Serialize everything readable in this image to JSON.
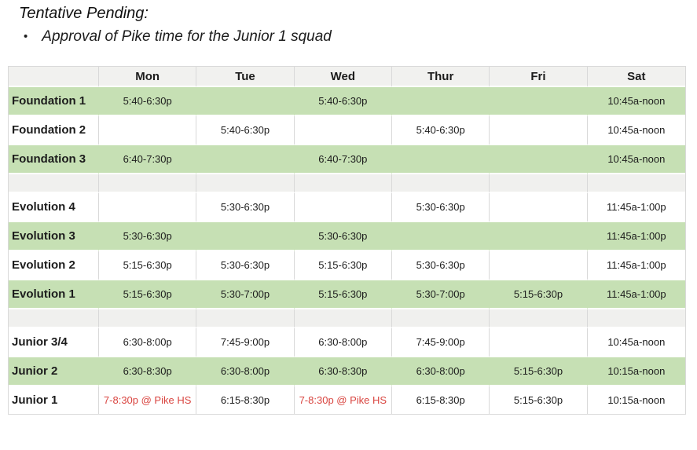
{
  "page": {
    "title": "Tentative Pending:",
    "bullet_glyph": "•",
    "bullet": "Approval of Pike time for the Junior 1 squad"
  },
  "colors": {
    "green_row": "#c6e0b4",
    "spacer_row": "#f0f0ee",
    "header_row": "#f1f1ef",
    "pike_red": "#d9443f",
    "border_gray": "#d9d9d9"
  },
  "table": {
    "corner_label": "",
    "days": [
      "Mon",
      "Tue",
      "Wed",
      "Thur",
      "Fri",
      "Sat"
    ],
    "rows": [
      {
        "label": "Foundation 1",
        "style": "green",
        "cells": [
          {
            "text": "5:40-6:30p"
          },
          {
            "text": ""
          },
          {
            "text": "5:40-6:30p"
          },
          {
            "text": ""
          },
          {
            "text": ""
          },
          {
            "text": "10:45a-noon"
          }
        ]
      },
      {
        "label": "Foundation 2",
        "style": "white",
        "cells": [
          {
            "text": ""
          },
          {
            "text": "5:40-6:30p"
          },
          {
            "text": ""
          },
          {
            "text": "5:40-6:30p"
          },
          {
            "text": ""
          },
          {
            "text": "10:45a-noon"
          }
        ]
      },
      {
        "label": "Foundation 3",
        "style": "green",
        "cells": [
          {
            "text": "6:40-7:30p"
          },
          {
            "text": ""
          },
          {
            "text": "6:40-7:30p"
          },
          {
            "text": ""
          },
          {
            "text": ""
          },
          {
            "text": "10:45a-noon"
          }
        ]
      },
      {
        "label": "",
        "style": "spacer",
        "cells": [
          {
            "text": ""
          },
          {
            "text": ""
          },
          {
            "text": ""
          },
          {
            "text": ""
          },
          {
            "text": ""
          },
          {
            "text": ""
          }
        ]
      },
      {
        "label": "Evolution 4",
        "style": "white",
        "cells": [
          {
            "text": ""
          },
          {
            "text": "5:30-6:30p"
          },
          {
            "text": ""
          },
          {
            "text": "5:30-6:30p"
          },
          {
            "text": ""
          },
          {
            "text": "11:45a-1:00p"
          }
        ]
      },
      {
        "label": "Evolution 3",
        "style": "green",
        "cells": [
          {
            "text": "5:30-6:30p"
          },
          {
            "text": ""
          },
          {
            "text": "5:30-6:30p"
          },
          {
            "text": ""
          },
          {
            "text": ""
          },
          {
            "text": "11:45a-1:00p"
          }
        ]
      },
      {
        "label": "Evolution 2",
        "style": "white",
        "cells": [
          {
            "text": "5:15-6:30p"
          },
          {
            "text": "5:30-6:30p"
          },
          {
            "text": "5:15-6:30p"
          },
          {
            "text": "5:30-6:30p"
          },
          {
            "text": ""
          },
          {
            "text": "11:45a-1:00p"
          }
        ]
      },
      {
        "label": "Evolution 1",
        "style": "green",
        "cells": [
          {
            "text": "5:15-6:30p"
          },
          {
            "text": "5:30-7:00p"
          },
          {
            "text": "5:15-6:30p"
          },
          {
            "text": "5:30-7:00p"
          },
          {
            "text": "5:15-6:30p"
          },
          {
            "text": "11:45a-1:00p"
          }
        ]
      },
      {
        "label": "",
        "style": "spacer",
        "cells": [
          {
            "text": ""
          },
          {
            "text": ""
          },
          {
            "text": ""
          },
          {
            "text": ""
          },
          {
            "text": ""
          },
          {
            "text": ""
          }
        ]
      },
      {
        "label": "Junior 3/4",
        "style": "white",
        "cells": [
          {
            "text": "6:30-8:00p"
          },
          {
            "text": "7:45-9:00p"
          },
          {
            "text": "6:30-8:00p"
          },
          {
            "text": "7:45-9:00p"
          },
          {
            "text": ""
          },
          {
            "text": "10:45a-noon"
          }
        ]
      },
      {
        "label": "Junior 2",
        "style": "green",
        "cells": [
          {
            "text": "6:30-8:30p"
          },
          {
            "text": "6:30-8:00p"
          },
          {
            "text": "6:30-8:30p"
          },
          {
            "text": "6:30-8:00p"
          },
          {
            "text": "5:15-6:30p"
          },
          {
            "text": "10:15a-noon"
          }
        ]
      },
      {
        "label": "Junior 1",
        "style": "white",
        "cells": [
          {
            "text": "7-8:30p @ Pike HS",
            "highlight": "red"
          },
          {
            "text": "6:15-8:30p"
          },
          {
            "text": "7-8:30p @ Pike HS",
            "highlight": "red"
          },
          {
            "text": "6:15-8:30p"
          },
          {
            "text": "5:15-6:30p"
          },
          {
            "text": "10:15a-noon"
          }
        ]
      }
    ]
  }
}
